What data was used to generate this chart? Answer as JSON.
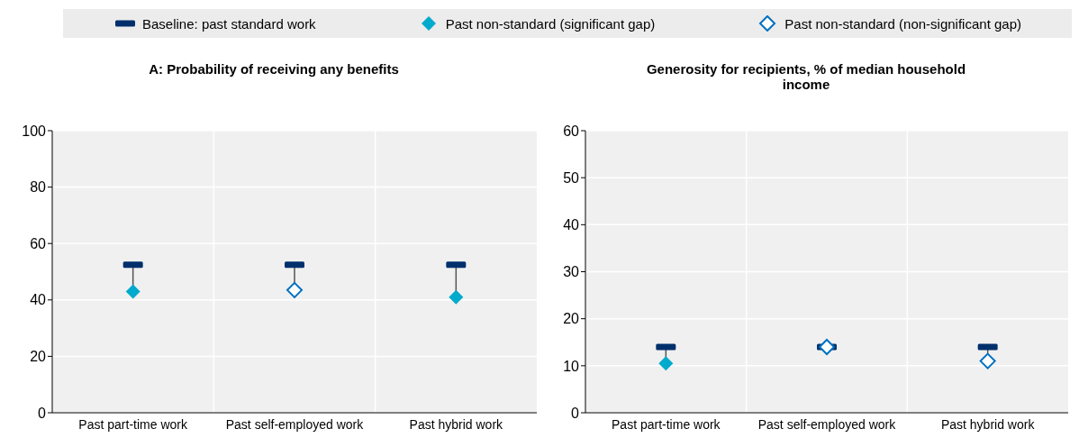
{
  "chart_data": [
    {
      "type": "scatter",
      "title": "A: Probability of receiving any benefits",
      "categories": [
        "Past part-time work",
        "Past self-employed work",
        "Past hybrid work"
      ],
      "ylim": [
        0,
        100
      ],
      "yticks": [
        0,
        20,
        40,
        60,
        80,
        100
      ],
      "grid": true,
      "legend": "top",
      "series": [
        {
          "name": "Baseline: past standard work",
          "color": "#002f6c",
          "values": [
            52.5,
            52.5,
            52.5
          ]
        },
        {
          "name": "Past non-standard (significant gap)",
          "color": "#00aacc",
          "marker": "diamond",
          "values": [
            43,
            null,
            41
          ]
        },
        {
          "name": "Past non-standard (non-significant gap)",
          "color": "#0070c0",
          "marker": "diamond",
          "values": [
            null,
            43.5,
            null
          ]
        }
      ]
    },
    {
      "type": "scatter",
      "title": "Generosity for recipients, % of median household income",
      "categories": [
        "Past part-time work",
        "Past self-employed work",
        "Past hybrid work"
      ],
      "ylim": [
        0,
        60
      ],
      "yticks": [
        0,
        10,
        20,
        30,
        40,
        50,
        60
      ],
      "grid": true,
      "series": [
        {
          "color": "#002f6c",
          "values": [
            14,
            14,
            14
          ]
        },
        {
          "color": "#00aacc",
          "marker": "diamond",
          "values": [
            10.5,
            null,
            null
          ]
        },
        {
          "color": "#0070c0",
          "marker": "diamond",
          "values": [
            null,
            14,
            11
          ]
        }
      ]
    }
  ]
}
